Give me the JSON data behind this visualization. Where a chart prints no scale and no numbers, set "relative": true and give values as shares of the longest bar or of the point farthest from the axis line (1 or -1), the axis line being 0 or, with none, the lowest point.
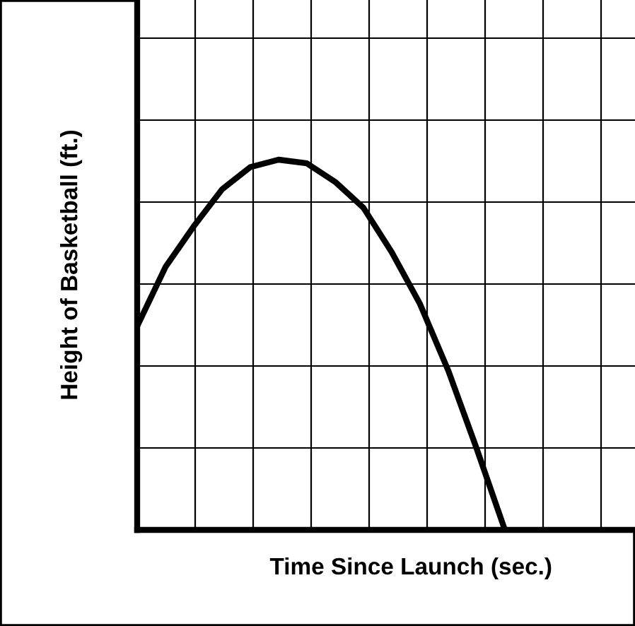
{
  "chart_data": {
    "type": "line",
    "xlabel": "Time Since Launch (sec.)",
    "ylabel": "Height of Basketball (ft.)",
    "relative": true,
    "grid": true,
    "tick_labels": false,
    "marker": "none",
    "line_style": "solid",
    "categories": [
      null,
      null,
      null,
      null,
      null,
      null,
      null,
      null,
      null,
      null,
      null,
      null,
      null,
      null
    ],
    "series": [
      {
        "color": "#000000",
        "values": [
          0.55,
          0.71,
          0.82,
          0.92,
          0.98,
          1,
          0.99,
          0.94,
          0.87,
          0.75,
          0.61,
          0.43,
          0.22,
          0
        ]
      }
    ]
  }
}
